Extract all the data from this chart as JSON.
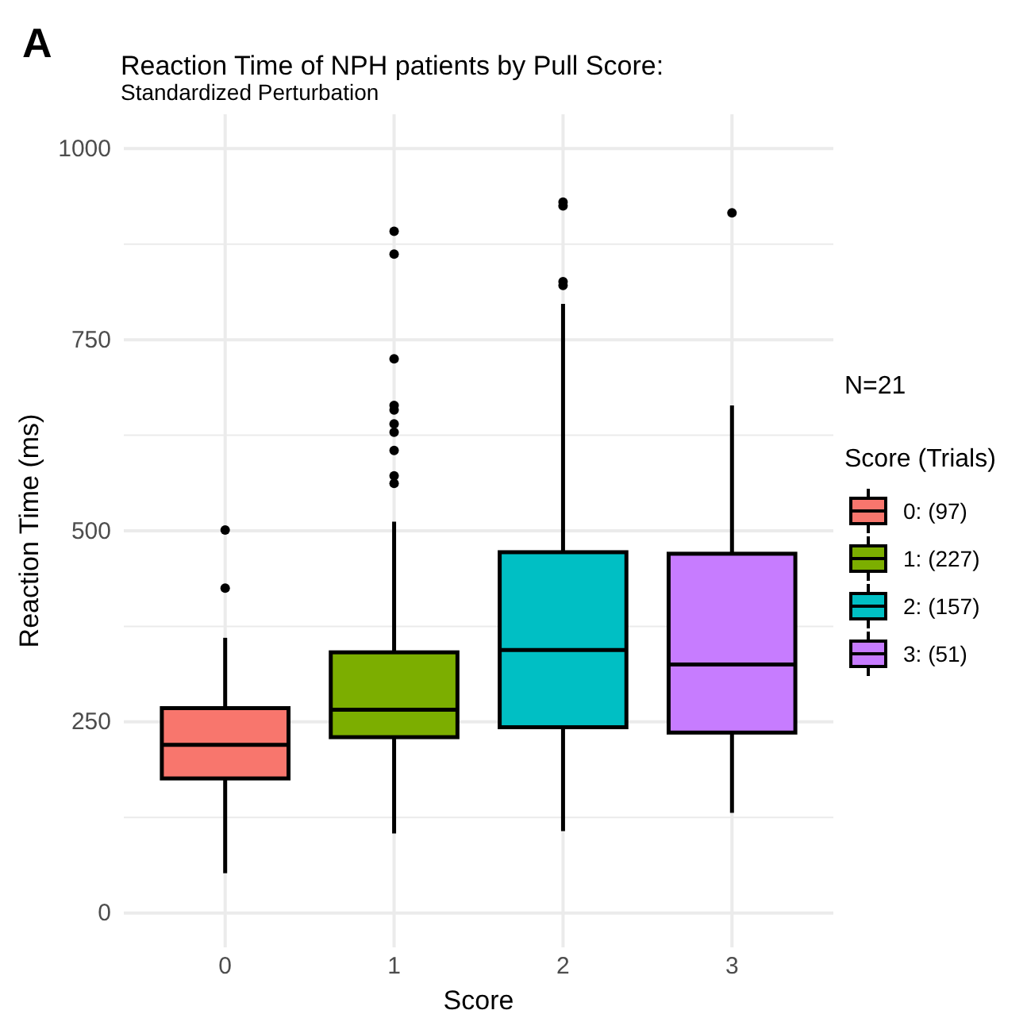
{
  "chart_data": {
    "type": "box",
    "title": "Reaction Time of NPH patients by Pull Score:",
    "subtitle": "Standardized Perturbation",
    "xlabel": "Score",
    "ylabel": "Reaction Time (ms)",
    "legend_title": "Score (Trials)",
    "annotations": [
      "A",
      "N=21"
    ],
    "categories": [
      "0",
      "1",
      "2",
      "3"
    ],
    "ylim": [
      -45,
      1045
    ],
    "yticks": [
      0,
      {
        "value": 125,
        "label": null
      },
      250,
      {
        "value": 375,
        "label": null
      },
      500,
      {
        "value": 625,
        "label": null
      },
      750,
      {
        "value": 875,
        "label": null
      },
      1000
    ],
    "grid": true,
    "legend": "right",
    "series": [
      {
        "name": "0: (97)",
        "color": "#f8766d",
        "x": [
          "0"
        ],
        "boxes": [
          {
            "low": 52,
            "q1": 176,
            "median": 220,
            "q3": 268,
            "high": 360,
            "outliers": [
              425,
              501
            ]
          }
        ]
      },
      {
        "name": "1: (227)",
        "color": "#7cae00",
        "x": [
          "1"
        ],
        "boxes": [
          {
            "low": 104,
            "q1": 230,
            "median": 266,
            "q3": 341,
            "high": 512,
            "outliers": [
              562,
              572,
              605,
              629,
              640,
              658,
              664,
              725,
              862,
              892
            ]
          }
        ]
      },
      {
        "name": "2: (157)",
        "color": "#00bfc4",
        "x": [
          "2"
        ],
        "boxes": [
          {
            "low": 107,
            "q1": 243,
            "median": 344,
            "q3": 472,
            "high": 797,
            "outliers": [
              821,
              826,
              925,
              930
            ]
          }
        ]
      },
      {
        "name": "3: (51)",
        "color": "#c77cff",
        "x": [
          "3"
        ],
        "boxes": [
          {
            "low": 131,
            "q1": 236,
            "median": 325,
            "q3": 470,
            "high": 664,
            "outliers": [
              916
            ]
          }
        ]
      }
    ]
  }
}
